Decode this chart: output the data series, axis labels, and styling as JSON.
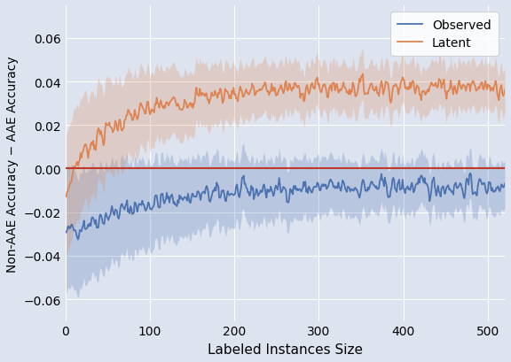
{
  "xlabel": "Labeled Instances Size",
  "ylabel": "Non-AAE Accuracy − AAE Accuracy",
  "xlim": [
    0,
    520
  ],
  "ylim": [
    -0.07,
    0.075
  ],
  "yticks": [
    -0.06,
    -0.04,
    -0.02,
    0.0,
    0.02,
    0.04,
    0.06
  ],
  "xticks": [
    0,
    100,
    200,
    300,
    400,
    500
  ],
  "hline_y": 0.0,
  "hline_color": "#c0392b",
  "observed_color": "#4c72b0",
  "latent_color": "#dd8452",
  "observed_fill_alpha": 0.25,
  "latent_fill_alpha": 0.25,
  "background_color": "#dde4f0",
  "grid_color": "#ffffff",
  "n_points": 520,
  "legend_labels": [
    "Observed",
    "Latent"
  ]
}
